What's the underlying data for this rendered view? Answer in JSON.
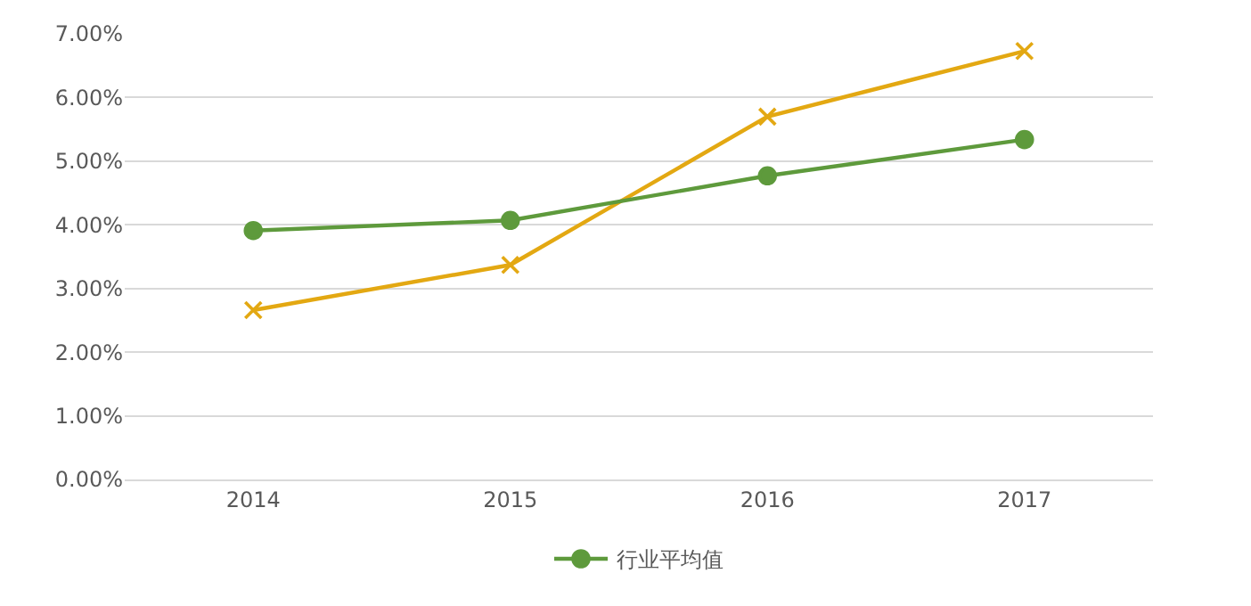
{
  "chart_data": {
    "type": "line",
    "categories": [
      "2014",
      "2015",
      "2016",
      "2017"
    ],
    "series": [
      {
        "color": "#e3a812",
        "marker": "cross",
        "values": [
          2.66,
          3.37,
          5.7,
          6.73
        ]
      },
      {
        "name": "行业平均值",
        "color": "#5e9a3c",
        "marker": "circle",
        "values": [
          3.91,
          4.07,
          4.77,
          5.34
        ]
      }
    ],
    "ylim": [
      0,
      7
    ],
    "yticks": [
      {
        "value": 0,
        "label": "0.00%"
      },
      {
        "value": 1,
        "label": "1.00%"
      },
      {
        "value": 2,
        "label": "2.00%"
      },
      {
        "value": 3,
        "label": "3.00%"
      },
      {
        "value": 4,
        "label": "4.00%"
      },
      {
        "value": 5,
        "label": "5.00%"
      },
      {
        "value": 6,
        "label": "6.00%"
      },
      {
        "value": 7,
        "label": "7.00%"
      }
    ],
    "grid": "y",
    "legend": "bottom",
    "line_style": "solid"
  }
}
